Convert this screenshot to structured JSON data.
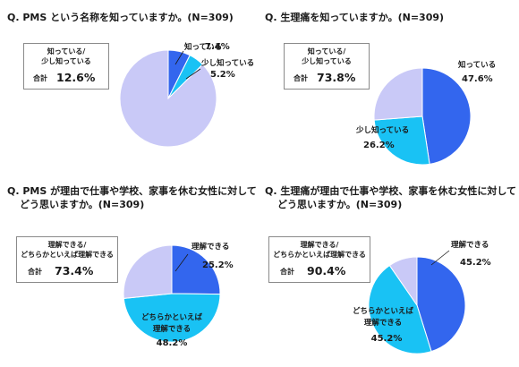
{
  "colors": {
    "dark_blue": "#3366ee",
    "cyan": "#19c2f4",
    "lavender": "#c9c9f7",
    "slice_edge": "#ffffff"
  },
  "chart_data": [
    {
      "type": "pie",
      "title": "Q. PMS という名称を知っていますか。(N=309)",
      "summary": {
        "labels": [
          "知っている/",
          "少し知っている"
        ],
        "total_label": "合計",
        "total_value": "12.6%"
      },
      "slices": [
        {
          "label": "知っている",
          "value": 7.4,
          "value_text": "7.4%",
          "color": "#3366ee"
        },
        {
          "label": "少し知っている",
          "value": 5.2,
          "value_text": "5.2%",
          "color": "#19c2f4"
        },
        {
          "label": "",
          "value": 87.4,
          "value_text": "",
          "color": "#c9c9f7"
        }
      ]
    },
    {
      "type": "pie",
      "title": "Q. 生理痛を知っていますか。(N=309)",
      "summary": {
        "labels": [
          "知っている/",
          "少し知っている"
        ],
        "total_label": "合計",
        "total_value": "73.8%"
      },
      "slices": [
        {
          "label": "知っている",
          "value": 47.6,
          "value_text": "47.6%",
          "color": "#3366ee"
        },
        {
          "label": "少し知っている",
          "value": 26.2,
          "value_text": "26.2%",
          "color": "#19c2f4"
        },
        {
          "label": "",
          "value": 26.2,
          "value_text": "",
          "color": "#c9c9f7"
        }
      ]
    },
    {
      "type": "pie",
      "title": [
        "Q. PMS が理由で仕事や学校、家事を休む女性に対して",
        "どう思いますか。(N=309)"
      ],
      "summary": {
        "labels": [
          "理解できる/",
          "どちらかといえば理解できる"
        ],
        "total_label": "合計",
        "total_value": "73.4%"
      },
      "slices": [
        {
          "label": "理解できる",
          "value": 25.2,
          "value_text": "25.2%",
          "color": "#3366ee"
        },
        {
          "label": [
            "どちらかといえば",
            "理解できる"
          ],
          "value": 48.2,
          "value_text": "48.2%",
          "color": "#19c2f4"
        },
        {
          "label": "",
          "value": 26.6,
          "value_text": "",
          "color": "#c9c9f7"
        }
      ]
    },
    {
      "type": "pie",
      "title": [
        "Q. 生理痛が理由で仕事や学校、家事を休む女性に対して",
        "どう思いますか。(N=309)"
      ],
      "summary": {
        "labels": [
          "理解できる/",
          "どちらかといえば理解できる"
        ],
        "total_label": "合計",
        "total_value": "90.4%"
      },
      "slices": [
        {
          "label": "理解できる",
          "value": 45.2,
          "value_text": "45.2%",
          "color": "#3366ee"
        },
        {
          "label": [
            "どちらかといえば",
            "理解できる"
          ],
          "value": 45.2,
          "value_text": "45.2%",
          "color": "#19c2f4"
        },
        {
          "label": "",
          "value": 9.6,
          "value_text": "",
          "color": "#c9c9f7"
        }
      ]
    }
  ]
}
